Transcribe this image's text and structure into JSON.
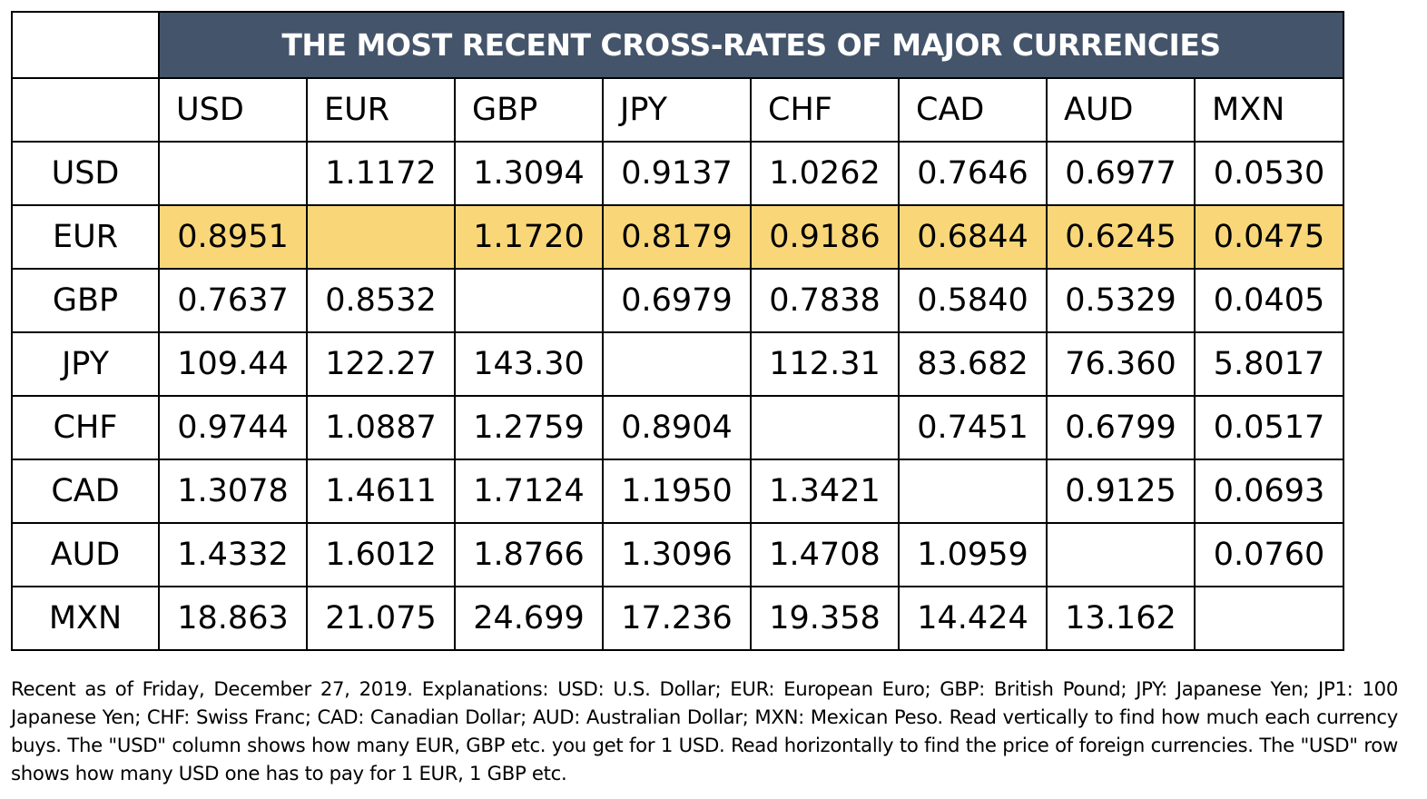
{
  "title": "THE MOST RECENT CROSS-RATES OF MAJOR CURRENCIES",
  "column_headers": [
    "USD",
    "EUR",
    "GBP",
    "JPY",
    "CHF",
    "CAD",
    "AUD",
    "MXN"
  ],
  "rows": [
    {
      "label": "USD",
      "values": [
        "",
        "1.1172",
        "1.3094",
        "0.9137",
        "1.0262",
        "0.7646",
        "0.6977",
        "0.0530"
      ]
    },
    {
      "label": "EUR",
      "values": [
        "0.8951",
        "",
        "1.1720",
        "0.8179",
        "0.9186",
        "0.6844",
        "0.6245",
        "0.0475"
      ]
    },
    {
      "label": "GBP",
      "values": [
        "0.7637",
        "0.8532",
        "",
        "0.6979",
        "0.7838",
        "0.5840",
        "0.5329",
        "0.0405"
      ]
    },
    {
      "label": "JPY",
      "values": [
        "109.44",
        "122.27",
        "143.30",
        "",
        "112.31",
        "83.682",
        "76.360",
        "5.8017"
      ]
    },
    {
      "label": "CHF",
      "values": [
        "0.9744",
        "1.0887",
        "1.2759",
        "0.8904",
        "",
        "0.7451",
        "0.6799",
        "0.0517"
      ]
    },
    {
      "label": "CAD",
      "values": [
        "1.3078",
        "1.4611",
        "1.7124",
        "1.1950",
        "1.3421",
        "",
        "0.9125",
        "0.0693"
      ]
    },
    {
      "label": "AUD",
      "values": [
        "1.4332",
        "1.6012",
        "1.8766",
        "1.3096",
        "1.4708",
        "1.0959",
        "",
        "0.0760"
      ]
    },
    {
      "label": "MXN",
      "values": [
        "18.863",
        "21.075",
        "24.699",
        "17.236",
        "19.358",
        "14.424",
        "13.162",
        ""
      ]
    }
  ],
  "highlight_row": "EUR",
  "colors": {
    "title_background": "#44546a",
    "title_text": "#ffffff",
    "highlight": "#f9d778",
    "border": "#000000"
  },
  "footnote": "Recent as of Friday, December 27, 2019. Explanations: USD: U.S. Dollar; EUR: European Euro; GBP: British Pound; JPY: Japanese Yen; JP1: 100 Japanese Yen; CHF: Swiss Franc; CAD: Canadian Dollar; AUD: Australian Dollar; MXN: Mexican Peso. Read vertically to find how much each currency buys. The \"USD\" column shows how many EUR, GBP etc. you get for 1 USD. Read horizontally to find the price of foreign currencies. The \"USD\" row shows how many USD one has to pay for 1 EUR, 1 GBP etc."
}
